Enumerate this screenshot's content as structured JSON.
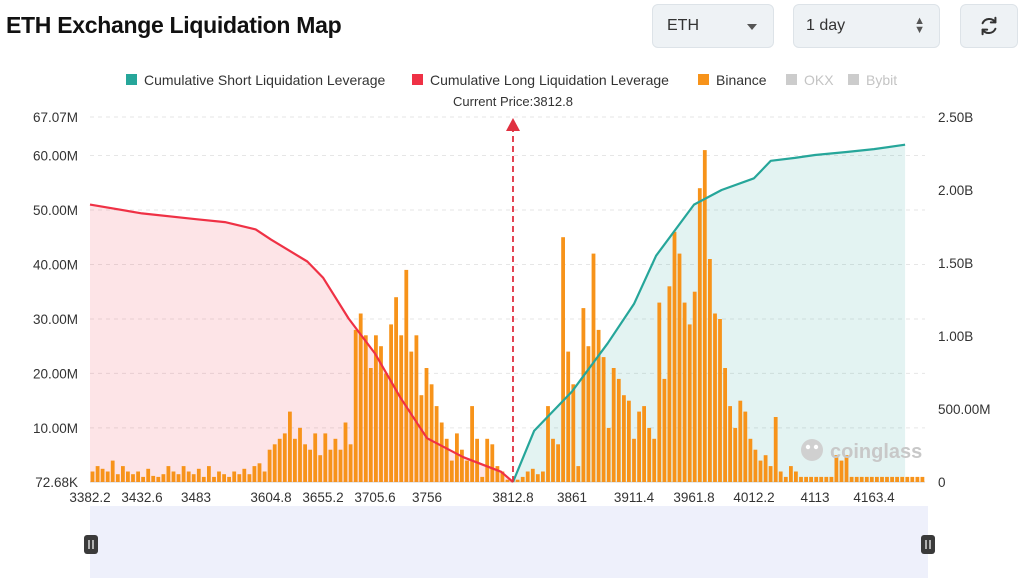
{
  "header": {
    "title": "ETH Exchange Liquidation Map",
    "symbol_select": "ETH",
    "range_select": "1 day",
    "refresh_icon": "refresh-icon"
  },
  "colors": {
    "short": "#26a69a",
    "long": "#ef3145",
    "binance": "#f7931a",
    "disabled": "#cccccc",
    "navigator": "#eef0fb"
  },
  "watermark": "coinglass",
  "chart_data": {
    "type": "bar",
    "current_price_label": "Current Price:3812.8",
    "current_price": 3812.8,
    "x_ticks": [
      "3382.2",
      "3432.6",
      "3483",
      "3604.8",
      "3655.2",
      "3705.6",
      "3756",
      "3812.8",
      "3861",
      "3911.4",
      "3961.8",
      "4012.2",
      "4113",
      "4163.4"
    ],
    "y_left_ticks": [
      "72.68K",
      "10.00M",
      "20.00M",
      "30.00M",
      "40.00M",
      "50.00M",
      "60.00M",
      "67.07M"
    ],
    "y_left_range": [
      0.07268,
      67.07
    ],
    "y_right_ticks": [
      "0",
      "500.00M",
      "1.00B",
      "1.50B",
      "2.00B",
      "2.50B"
    ],
    "y_right_range": [
      0,
      2.5
    ],
    "legend": [
      {
        "name": "Cumulative Short Liquidation Leverage",
        "color": "#26a69a",
        "enabled": true
      },
      {
        "name": "Cumulative Long Liquidation Leverage",
        "color": "#ef3145",
        "enabled": true
      },
      {
        "name": "Binance",
        "color": "#f7931a",
        "enabled": true
      },
      {
        "name": "OKX",
        "color": "#cccccc",
        "enabled": false
      },
      {
        "name": "Bybit",
        "color": "#cccccc",
        "enabled": false
      }
    ],
    "series": [
      {
        "name": "Binance",
        "kind": "bar",
        "unit": "M",
        "values": [
          2,
          3,
          2.5,
          2,
          4,
          1.5,
          3,
          2,
          1.5,
          2,
          1,
          2.5,
          1.2,
          1,
          1.5,
          3,
          2,
          1.5,
          3,
          2,
          1.5,
          2.5,
          1,
          3,
          1,
          2,
          1.5,
          1,
          2,
          1.5,
          2.5,
          1.5,
          3,
          3.5,
          2,
          6,
          7,
          8,
          9,
          13,
          8,
          10,
          7,
          6,
          9,
          5,
          9,
          6,
          8,
          6,
          11,
          7,
          28,
          31,
          27,
          21,
          27,
          25,
          20,
          29,
          34,
          27,
          39,
          24,
          27,
          16,
          21,
          18,
          14,
          11,
          8,
          4,
          9,
          6,
          4,
          14,
          8,
          1,
          8,
          7,
          3,
          2,
          0.5,
          0.3,
          0.5,
          1,
          2,
          2.5,
          1.5,
          2,
          14,
          8,
          7,
          45,
          24,
          18,
          3,
          32,
          25,
          42,
          28,
          23,
          10,
          21,
          19,
          16,
          15,
          8,
          13,
          14,
          10,
          8,
          33,
          19,
          36,
          46,
          42,
          33,
          29,
          35,
          54,
          61,
          41,
          31,
          30,
          21,
          14,
          10,
          15,
          13,
          8,
          6,
          4,
          5,
          3,
          12,
          2,
          1,
          3,
          2,
          1,
          1,
          1,
          1,
          1,
          1,
          1,
          5,
          4,
          5,
          1,
          1,
          1,
          1,
          1,
          1,
          1,
          1,
          1,
          1,
          1,
          1,
          1,
          1,
          1
        ]
      },
      {
        "name": "Cumulative Long Liquidation Leverage",
        "kind": "line",
        "unit": "B",
        "x": [
          3382.2,
          3432.6,
          3483,
          3530,
          3580,
          3604.8,
          3640,
          3655.2,
          3680,
          3705.6,
          3730,
          3756,
          3780,
          3805,
          3812.8
        ],
        "values": [
          1.9,
          1.84,
          1.8,
          1.78,
          1.73,
          1.66,
          1.51,
          1.4,
          1.12,
          0.88,
          0.58,
          0.3,
          0.17,
          0.07,
          0.0
        ]
      },
      {
        "name": "Cumulative Short Liquidation Leverage",
        "kind": "line",
        "unit": "B",
        "x": [
          3812.8,
          3830,
          3861,
          3890,
          3911.4,
          3930,
          3961.8,
          3985,
          4012.2,
          4040,
          4080,
          4113,
          4140,
          4163.4,
          4190
        ],
        "values": [
          0.0,
          0.35,
          0.62,
          0.95,
          1.22,
          1.55,
          1.9,
          2.0,
          2.08,
          2.2,
          2.22,
          2.24,
          2.26,
          2.28,
          2.31
        ]
      }
    ]
  }
}
